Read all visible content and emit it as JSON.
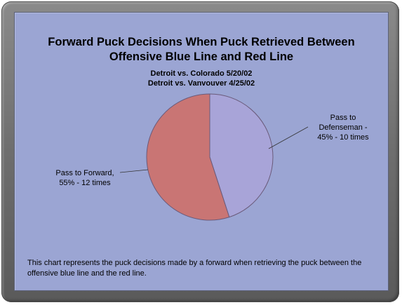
{
  "chart_data": {
    "type": "pie",
    "title_lines": [
      "Forward Puck Decisions When Puck Retrieved Between",
      "Offensive Blue Line and Red Line"
    ],
    "subtitle_lines": [
      "Detroit vs. Colorado 5/20/02",
      "Detroit vs. Vanvouver 4/25/02"
    ],
    "slices": [
      {
        "label_lines": [
          "Pass to",
          "Defenseman -",
          "45% - 10 times"
        ],
        "value": 45,
        "count": 10,
        "color": "#a8a4d8"
      },
      {
        "label_lines": [
          "Pass to Forward,",
          "55% - 12 times"
        ],
        "value": 55,
        "count": 12,
        "color": "#c97574"
      }
    ],
    "caption": "This chart represents the puck decisions made by a forward when retrieving the puck between the offensive blue line and the red line."
  }
}
